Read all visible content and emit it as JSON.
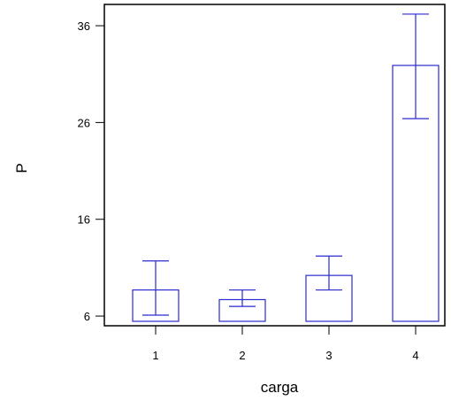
{
  "chart_data": {
    "type": "bar",
    "title": "",
    "xlabel": "carga",
    "ylabel": "P",
    "categories": [
      "1",
      "2",
      "3",
      "4"
    ],
    "values": [
      8.7,
      7.7,
      10.2,
      31.9
    ],
    "error_upper": [
      11.7,
      8.7,
      12.2,
      37.2
    ],
    "error_lower": [
      6.1,
      7.0,
      8.7,
      26.4
    ],
    "ylim": [
      5.0,
      38.2
    ],
    "yticks": [
      "6",
      "16",
      "26",
      "36"
    ],
    "grid": false,
    "legend": "none",
    "colors": {
      "bars": "#2a2ad0",
      "frame": "#000000"
    }
  }
}
